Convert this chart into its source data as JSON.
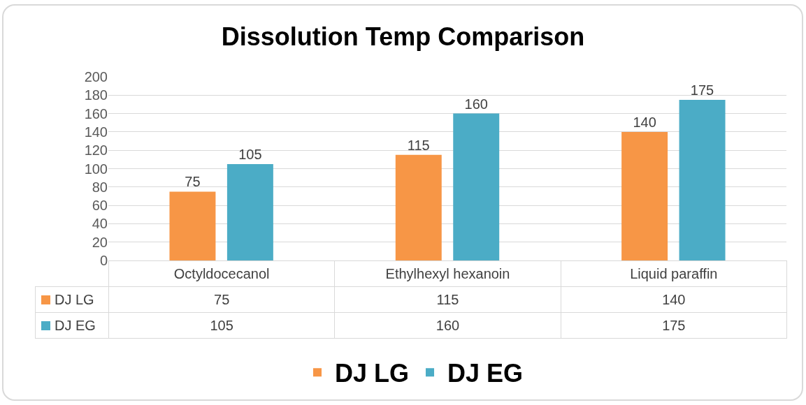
{
  "chart_data": {
    "type": "bar",
    "title": "Dissolution Temp Comparison",
    "categories": [
      "Octyldocecanol",
      "Ethylhexyl hexanoin",
      "Liquid paraffin"
    ],
    "series": [
      {
        "name": "DJ LG",
        "color": "#f79646",
        "values": [
          75,
          115,
          140
        ],
        "value_labels": [
          "75",
          "115",
          "140"
        ]
      },
      {
        "name": "DJ EG",
        "color": "#4bacc6",
        "values": [
          105,
          160,
          175
        ],
        "value_labels": [
          "105",
          "160",
          "175"
        ]
      }
    ],
    "ylim": [
      0,
      200
    ],
    "yticks": [
      0,
      20,
      40,
      60,
      80,
      100,
      120,
      140,
      160,
      180,
      200
    ],
    "annotations": [
      "75",
      "115",
      "140",
      "105",
      "160",
      "175"
    ],
    "grid": "y",
    "legend": "bottom",
    "data_labels": true
  }
}
